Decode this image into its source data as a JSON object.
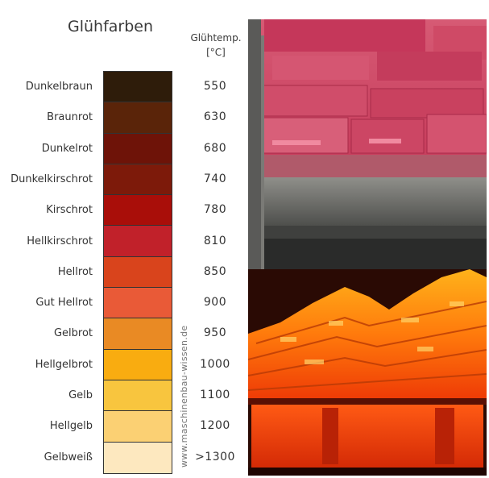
{
  "title": "Glühfarben",
  "temp_header": [
    "Glühtemp.",
    "[°C]"
  ],
  "watermark": "www.maschinenbau-wissen.de",
  "rows": [
    {
      "name": "Dunkelbraun",
      "temp": "550",
      "color": "#2e1c0a"
    },
    {
      "name": "Braunrot",
      "temp": "630",
      "color": "#5a2409"
    },
    {
      "name": "Dunkelrot",
      "temp": "680",
      "color": "#6e1308"
    },
    {
      "name": "Dunkelkirschrot",
      "temp": "740",
      "color": "#7d1a0a"
    },
    {
      "name": "Kirschrot",
      "temp": "780",
      "color": "#a90e09"
    },
    {
      "name": "Hellkirschrot",
      "temp": "810",
      "color": "#c1212a"
    },
    {
      "name": "Hellrot",
      "temp": "850",
      "color": "#d9441c"
    },
    {
      "name": "Gut Hellrot",
      "temp": "900",
      "color": "#e95a37"
    },
    {
      "name": "Gelbrot",
      "temp": "950",
      "color": "#e98a24"
    },
    {
      "name": "Hellgelbrot",
      "temp": "1000",
      "color": "#f9ac10"
    },
    {
      "name": "Gelb",
      "temp": "1100",
      "color": "#f8c53e"
    },
    {
      "name": "Hellgelb",
      "temp": "1200",
      "color": "#fbd073"
    },
    {
      "name": "Gelbweiß",
      "temp": ">1300",
      "color": "#fde8bf"
    }
  ]
}
